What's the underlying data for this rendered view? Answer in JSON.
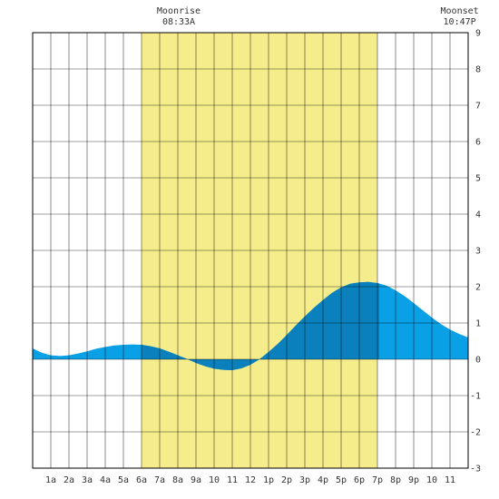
{
  "chart_data": {
    "type": "area",
    "title": "",
    "xlabel": "",
    "ylabel": "",
    "xlim": [
      0,
      24
    ],
    "ylim": [
      -3,
      9
    ],
    "y_ticks": [
      "-3",
      "-2",
      "-1",
      "0",
      "1",
      "2",
      "3",
      "4",
      "5",
      "6",
      "7",
      "8",
      "9"
    ],
    "x_tick_labels": [
      "1a",
      "2a",
      "3a",
      "4a",
      "5a",
      "6a",
      "7a",
      "8a",
      "9a",
      "10",
      "11",
      "12",
      "1p",
      "2p",
      "3p",
      "4p",
      "5p",
      "6p",
      "7p",
      "8p",
      "9p",
      "10",
      "11"
    ],
    "grid": true,
    "daylight": {
      "start_hour": 6.0,
      "end_hour": 19.0
    },
    "tide_highlight": {
      "start_hour": 6.0,
      "end_hour": 19.1
    },
    "series": [
      {
        "values_x": [
          0,
          0.5,
          1,
          1.5,
          2,
          2.5,
          3,
          3.5,
          4,
          4.5,
          5,
          5.5,
          6,
          6.5,
          7,
          7.5,
          8,
          8.5,
          9,
          9.5,
          10,
          10.5,
          11,
          11.5,
          12,
          12.5,
          13,
          13.5,
          14,
          14.5,
          15,
          15.5,
          16,
          16.5,
          17,
          17.5,
          18,
          18.5,
          19,
          19.5,
          20,
          20.5,
          21,
          21.5,
          22,
          22.5,
          23,
          23.5,
          24
        ],
        "values_y": [
          0.3,
          0.18,
          0.11,
          0.09,
          0.11,
          0.16,
          0.22,
          0.29,
          0.34,
          0.38,
          0.4,
          0.41,
          0.4,
          0.36,
          0.3,
          0.21,
          0.11,
          0.01,
          -0.1,
          -0.19,
          -0.26,
          -0.29,
          -0.3,
          -0.25,
          -0.15,
          0.0,
          0.2,
          0.42,
          0.67,
          0.93,
          1.18,
          1.42,
          1.63,
          1.83,
          1.98,
          2.08,
          2.12,
          2.13,
          2.1,
          2.03,
          1.9,
          1.74,
          1.55,
          1.35,
          1.15,
          0.97,
          0.82,
          0.7,
          0.6
        ]
      }
    ],
    "colors": {
      "background": "#ffffff",
      "daylight": "#f5ec8c",
      "tide": "#0aa0e6",
      "tide_dark": "#0a80bc",
      "grid": "#000000"
    },
    "annotations": [
      {
        "name": "moonrise",
        "label": "Moonrise",
        "time": "08:33A",
        "hour": 8.55
      },
      {
        "name": "moonset",
        "label": "Moonset",
        "time": "10:47P",
        "hour": 22.78
      }
    ]
  }
}
